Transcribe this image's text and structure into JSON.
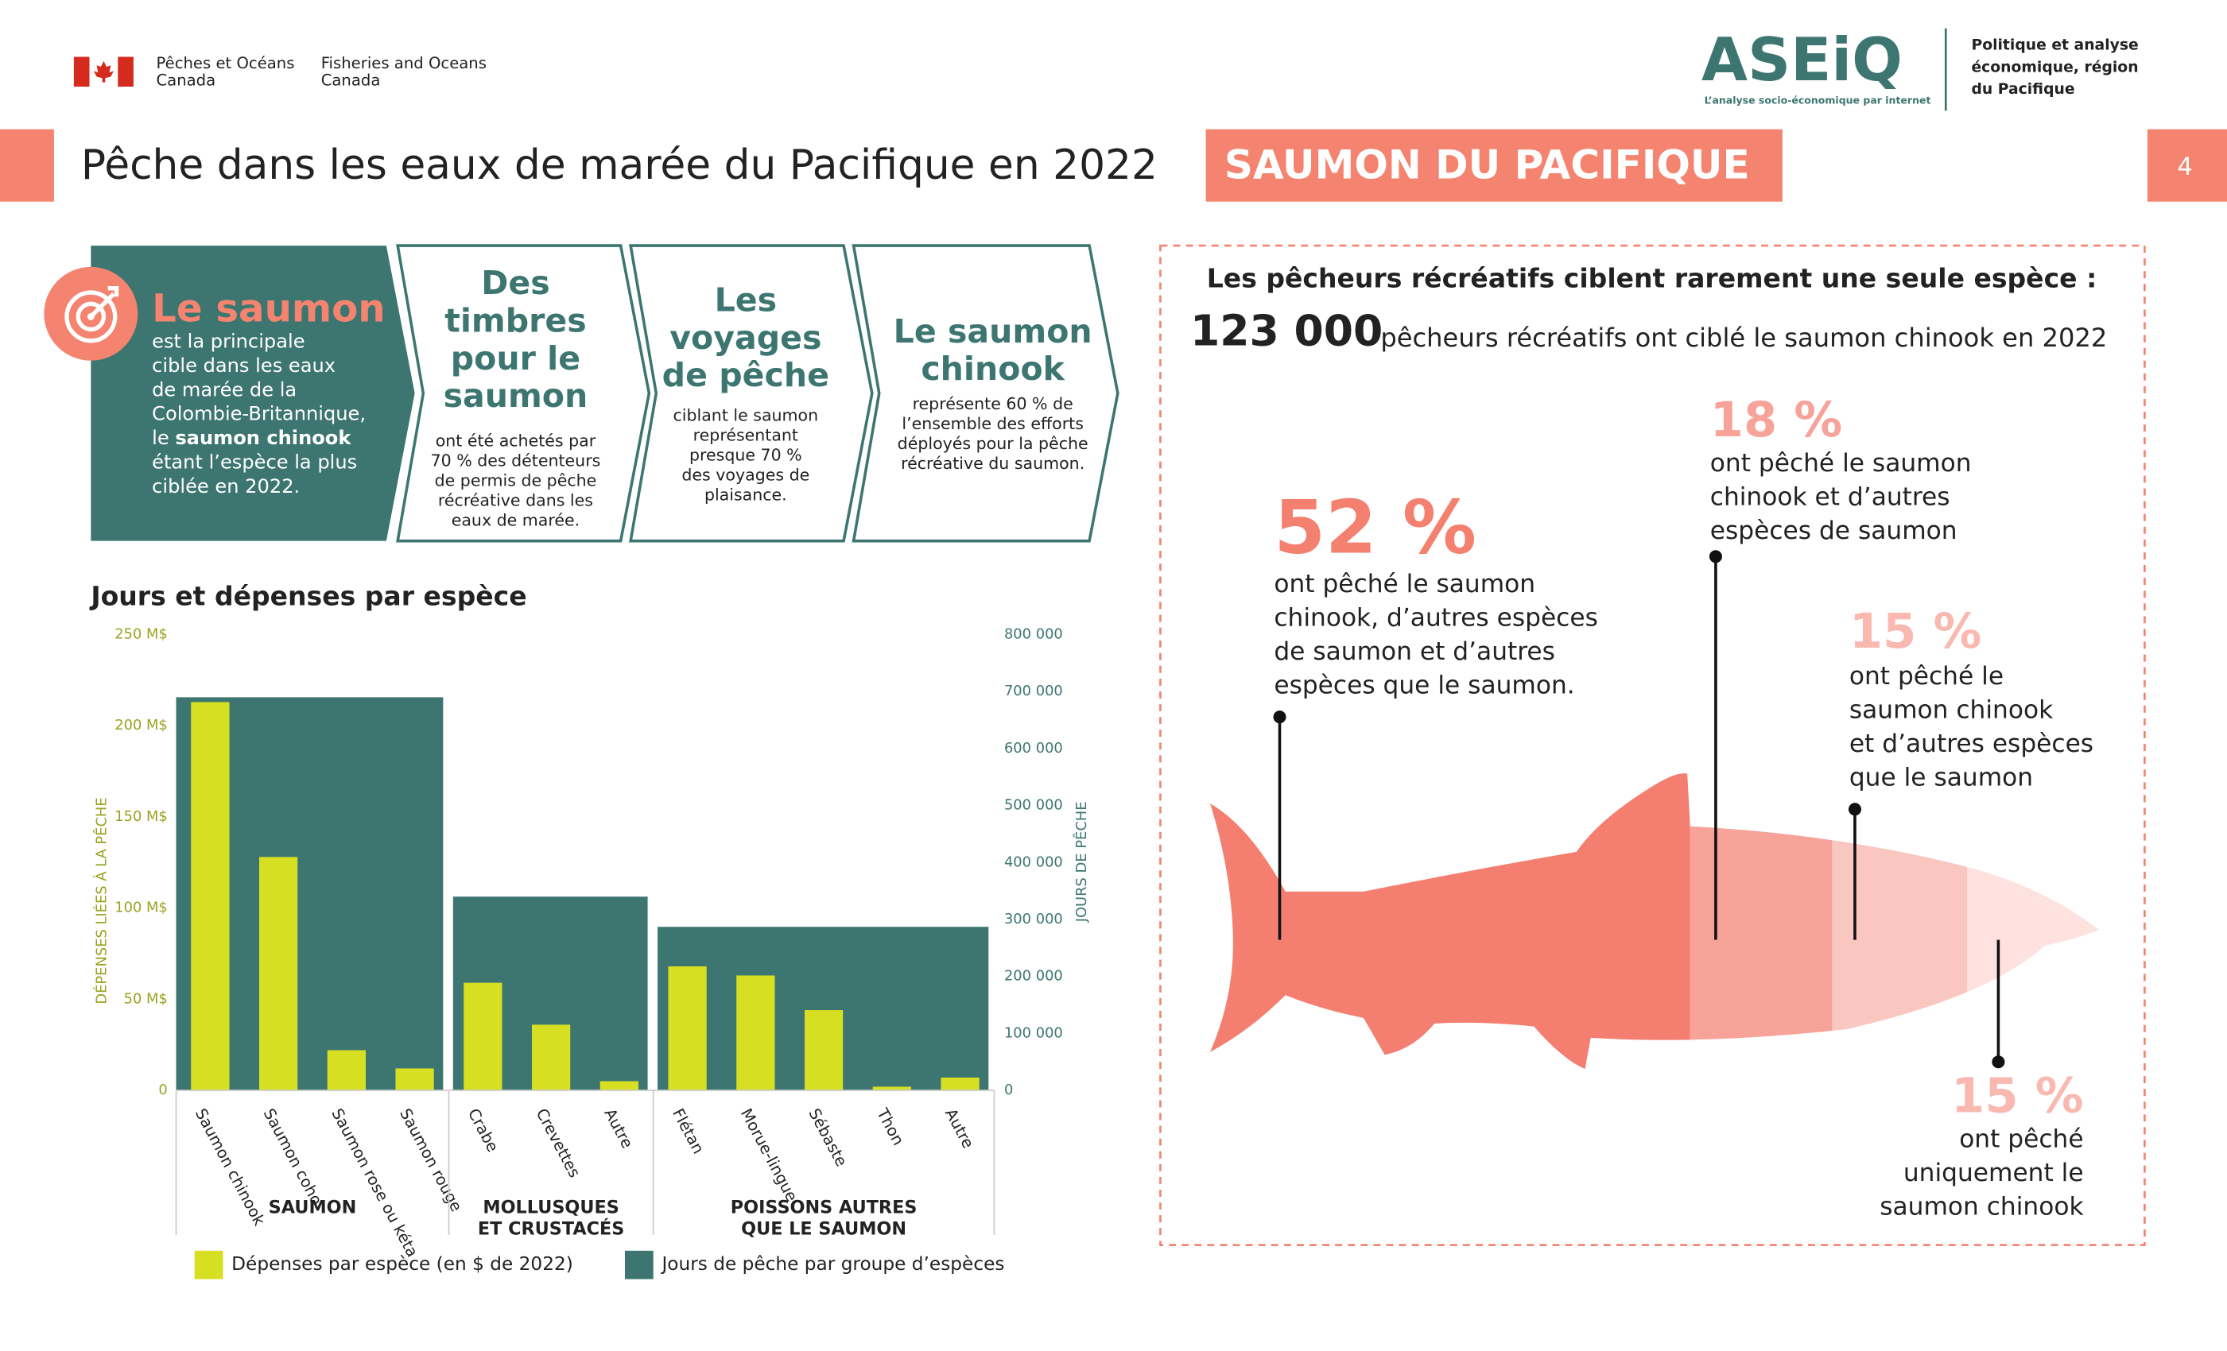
{
  "header": {
    "dept_fr": [
      "Pêches et Océans",
      "Canada"
    ],
    "dept_en": [
      "Fisheries and Oceans",
      "Canada"
    ],
    "logo": "ASEiQ",
    "logo_tagline": "L’analyse socio-économique par internet",
    "region": [
      "Politique et analyse",
      "économique, région",
      "du Pacifique"
    ]
  },
  "title": "Pêche dans les eaux de marée du Pacifique en 2022",
  "tag": "SAUMON DU PACIFIQUE",
  "page_number": "4",
  "panels": [
    {
      "heading": [
        "Le saumon"
      ],
      "body": [
        "est la principale",
        "cible dans les eaux",
        "de marée de la",
        "Colombie-Britannique,",
        {
          "text": "le ",
          "bold": "saumon chinook"
        },
        "étant l’espèce la plus",
        "ciblée en 2022."
      ]
    },
    {
      "heading": [
        "Des",
        "timbres",
        "pour le",
        "saumon"
      ],
      "body": [
        "ont été achetés par",
        "70 % des détenteurs",
        "de permis de pêche",
        "récréative dans les",
        "eaux de marée."
      ]
    },
    {
      "heading": [
        "Les",
        "voyages",
        "de pêche"
      ],
      "body": [
        "ciblant le saumon",
        "représentant",
        "presque 70 %",
        "des voyages de",
        "plaisance."
      ]
    },
    {
      "heading": [
        "Le saumon",
        "chinook"
      ],
      "body": [
        "représente 60 % de",
        "l’ensemble des efforts",
        "déployés pour la pêche",
        "récréative du saumon."
      ]
    }
  ],
  "chart_data": {
    "type": "bar",
    "title": "Jours et dépenses par espèce",
    "ylabel": "DÉPENSES LIÉES À LA PÊCHE",
    "y2label": "JOURS DE PÊCHE",
    "ylim": [
      0,
      250
    ],
    "yticks": [
      0,
      {
        "value": 50,
        "label": "50 M$"
      },
      {
        "value": 100,
        "label": "100 M$"
      },
      {
        "value": 150,
        "label": "150 M$"
      },
      {
        "value": 200,
        "label": "200 M$"
      },
      {
        "value": 250,
        "label": "250 M$"
      }
    ],
    "y2lim": [
      0,
      800000
    ],
    "y2ticks": [
      0,
      {
        "value": 100000,
        "label": "100 000"
      },
      {
        "value": 200000,
        "label": "200 000"
      },
      {
        "value": 300000,
        "label": "300 000"
      },
      {
        "value": 400000,
        "label": "400 000"
      },
      {
        "value": 500000,
        "label": "500 000"
      },
      {
        "value": 600000,
        "label": "600 000"
      },
      {
        "value": 700000,
        "label": "700 000"
      },
      {
        "value": 800000,
        "label": "800 000"
      }
    ],
    "groups": [
      {
        "name": [
          "SAUMON"
        ],
        "categories": [
          "Saumon chinook",
          "Saumon coho",
          "Saumon rose ou kéta",
          "Saumon rouge"
        ]
      },
      {
        "name": [
          "MOLLUSQUES",
          "ET CRUSTACÉS"
        ],
        "categories": [
          "Crabe",
          "Crevettes",
          "Autre"
        ]
      },
      {
        "name": [
          "POISSONS AUTRES",
          "QUE LE SAUMON"
        ],
        "categories": [
          "Flétan",
          "Morue-lingue",
          "Sébaste",
          "Thon",
          "Autre"
        ]
      }
    ],
    "series": [
      {
        "name": "Dépenses par espèce (en $ de 2022)",
        "color": "#d7df23",
        "values": [
          [
            213,
            128,
            22,
            12
          ],
          [
            59,
            36,
            5
          ],
          [
            68,
            63,
            44,
            2,
            7
          ]
        ]
      },
      {
        "name": "Jours de pêche par groupe d’espèces",
        "color": "#3d7670",
        "axis": "y2",
        "values": [
          690000,
          340000,
          287000
        ]
      }
    ]
  },
  "fish": {
    "title": "Les pêcheurs récréatifs ciblent rarement une seule espèce :",
    "count": "123 000",
    "count_text": "pêcheurs récréatifs ont ciblé le saumon chinook en 2022",
    "segments": [
      {
        "percent": "52 %",
        "text": [
          "ont pêché le saumon",
          "chinook, d’autres espèces",
          "de saumon et d’autres",
          "espèces que le saumon."
        ]
      },
      {
        "percent": "18 %",
        "text": [
          "ont pêché le saumon",
          "chinook et d’autres",
          "espèces de saumon"
        ]
      },
      {
        "percent": "15 %",
        "text": [
          "ont pêché le",
          "saumon chinook",
          "et d’autres espèces",
          "que le saumon"
        ]
      },
      {
        "percent": "15 %",
        "text": [
          "ont pêché",
          "uniquement le",
          "saumon chinook"
        ]
      }
    ]
  }
}
